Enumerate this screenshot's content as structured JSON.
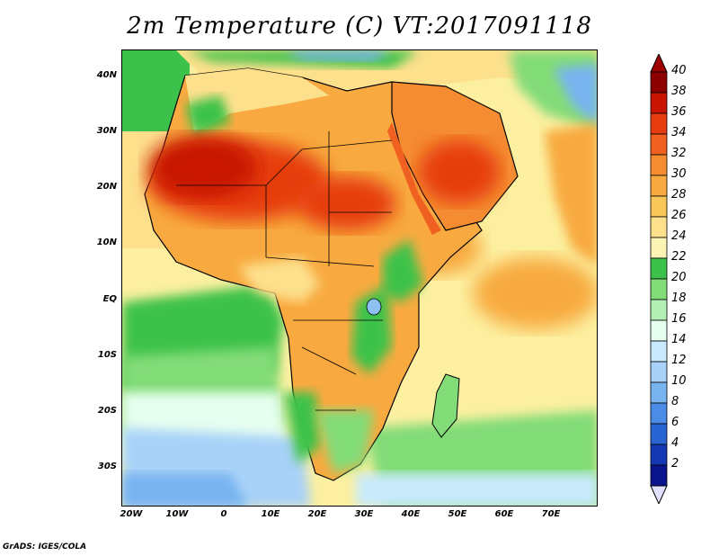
{
  "title": "2m Temperature (C) VT:2017091118",
  "credit": "GrADS: IGES/COLA",
  "map": {
    "lon_range": [
      "20W",
      "80E"
    ],
    "lat_range": [
      "37S",
      "45N"
    ],
    "lat_labels": [
      "40N",
      "30N",
      "20N",
      "10N",
      "EQ",
      "10S",
      "20S",
      "30S"
    ],
    "lon_labels": [
      "20W",
      "10W",
      "0",
      "10E",
      "20E",
      "30E",
      "40E",
      "50E",
      "60E",
      "70E"
    ],
    "hot_spots": [
      "Sahara",
      "Arabian Peninsula",
      "Sudan"
    ],
    "ocean_sea_colors": {
      "atlantic_south": "#8cc0f0",
      "tropical_atlantic": "#38c040",
      "indian_ocean_subtropical": "#fcf0a0",
      "indian_ocean_warm": "#f8b460"
    }
  },
  "colorbar": {
    "labels": [
      "40",
      "38",
      "36",
      "34",
      "32",
      "30",
      "28",
      "26",
      "24",
      "22",
      "20",
      "18",
      "16",
      "14",
      "12",
      "10",
      "8",
      "6",
      "4",
      "2"
    ],
    "colors": [
      "#8c0000",
      "#c81400",
      "#e63c10",
      "#f06020",
      "#f58c32",
      "#f8aa40",
      "#fac85a",
      "#fde08c",
      "#fcf4b4",
      "#3cc24a",
      "#82dc78",
      "#b4f0b4",
      "#e6fff0",
      "#c8eafc",
      "#a8d2f8",
      "#78b4f0",
      "#4b8ce6",
      "#2864d2",
      "#1438b4",
      "#0a148c"
    ],
    "top_arrow_color": "#a00000",
    "bottom_arrow_color": "#e0e0ff"
  }
}
